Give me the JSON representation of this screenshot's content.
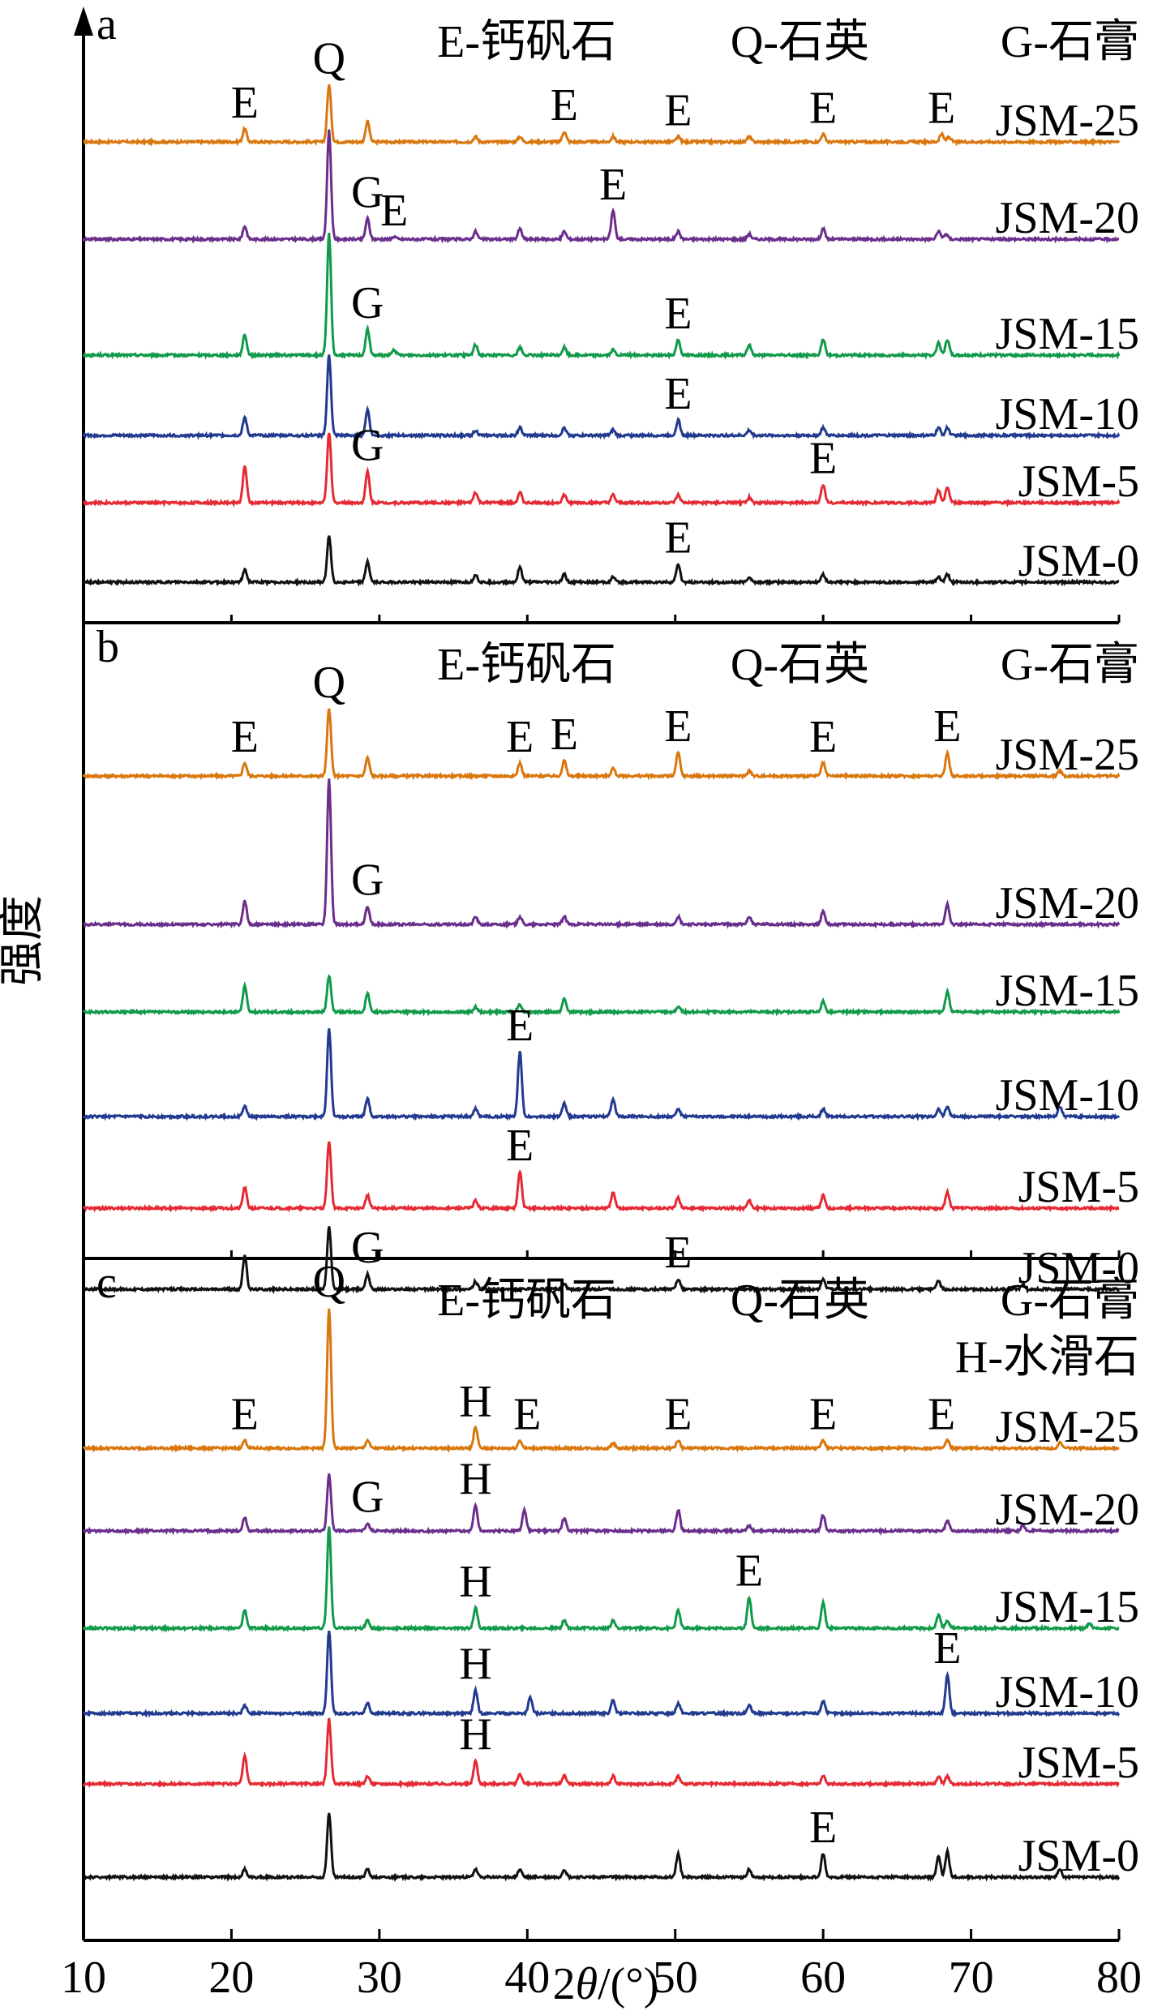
{
  "colors": {
    "JSM-25": "#d9770e",
    "JSM-20": "#6a2e8c",
    "JSM-15": "#119a4a",
    "JSM-10": "#223a8f",
    "JSM-5": "#e52a33",
    "JSM-0": "#111111"
  },
  "ylabel": "强度",
  "xlabel_parts": {
    "prefix": "2",
    "theta": "θ",
    "suffix": "/(°)"
  },
  "chart_data": [
    {
      "type": "line",
      "panel": "a",
      "legend_text": [
        "E-钙矾石",
        "Q-石英",
        "G-石膏"
      ],
      "xlim": [
        10,
        80
      ],
      "x_ticks": [
        10,
        20,
        30,
        40,
        50,
        60,
        70,
        80
      ],
      "series": [
        {
          "name": "JSM-25",
          "peaks": [
            [
              20.9,
              5
            ],
            [
              26.6,
              22
            ],
            [
              29.2,
              8
            ],
            [
              36.5,
              2
            ],
            [
              39.5,
              2
            ],
            [
              42.5,
              4
            ],
            [
              45.8,
              2
            ],
            [
              50.2,
              2
            ],
            [
              55,
              2
            ],
            [
              60,
              3
            ],
            [
              68,
              3
            ],
            [
              68.5,
              2
            ]
          ]
        },
        {
          "name": "JSM-20",
          "peaks": [
            [
              20.9,
              5
            ],
            [
              26.6,
              42
            ],
            [
              29.2,
              8
            ],
            [
              31,
              1
            ],
            [
              36.5,
              3
            ],
            [
              39.5,
              4
            ],
            [
              42.5,
              3
            ],
            [
              45.8,
              11
            ],
            [
              50.2,
              3
            ],
            [
              55,
              2
            ],
            [
              60,
              4
            ],
            [
              67.8,
              3
            ],
            [
              68.3,
              2
            ]
          ]
        },
        {
          "name": "JSM-15",
          "peaks": [
            [
              20.9,
              8
            ],
            [
              26.6,
              47
            ],
            [
              29.2,
              10
            ],
            [
              31,
              2
            ],
            [
              36.5,
              4
            ],
            [
              39.5,
              3
            ],
            [
              42.5,
              3
            ],
            [
              45.8,
              2
            ],
            [
              50.2,
              6
            ],
            [
              55,
              4
            ],
            [
              60,
              6
            ],
            [
              67.8,
              5
            ],
            [
              68.4,
              6
            ]
          ]
        },
        {
          "name": "JSM-10",
          "peaks": [
            [
              20.9,
              7
            ],
            [
              26.6,
              31
            ],
            [
              29.2,
              10
            ],
            [
              36.5,
              2
            ],
            [
              39.5,
              3
            ],
            [
              42.5,
              3
            ],
            [
              45.8,
              2
            ],
            [
              50.2,
              6
            ],
            [
              55,
              2
            ],
            [
              60,
              3
            ],
            [
              67.8,
              3
            ],
            [
              68.4,
              3
            ]
          ]
        },
        {
          "name": "JSM-5",
          "peaks": [
            [
              20.9,
              14
            ],
            [
              26.6,
              27
            ],
            [
              29.2,
              12
            ],
            [
              36.5,
              4
            ],
            [
              39.5,
              4
            ],
            [
              42.5,
              3
            ],
            [
              45.8,
              3
            ],
            [
              50.2,
              3
            ],
            [
              55,
              2
            ],
            [
              60,
              7
            ],
            [
              67.8,
              5
            ],
            [
              68.4,
              6
            ]
          ]
        },
        {
          "name": "JSM-0",
          "peaks": [
            [
              20.9,
              5
            ],
            [
              26.6,
              18
            ],
            [
              29.2,
              8
            ],
            [
              36.5,
              3
            ],
            [
              39.5,
              6
            ],
            [
              42.5,
              3
            ],
            [
              45.8,
              2
            ],
            [
              50.2,
              7
            ],
            [
              55,
              2
            ],
            [
              60,
              3
            ],
            [
              67.8,
              2
            ],
            [
              68.4,
              3
            ]
          ]
        }
      ],
      "peak_labels": [
        {
          "text": "E",
          "x": 20.9,
          "series": "JSM-25"
        },
        {
          "text": "Q",
          "x": 26.6,
          "series": "JSM-25"
        },
        {
          "text": "E",
          "x": 42.5,
          "series": "JSM-25"
        },
        {
          "text": "E",
          "x": 50.2,
          "series": "JSM-25"
        },
        {
          "text": "E",
          "x": 60.0,
          "series": "JSM-25"
        },
        {
          "text": "E",
          "x": 68.0,
          "series": "JSM-25"
        },
        {
          "text": "G",
          "x": 29.2,
          "series": "JSM-20"
        },
        {
          "text": "E",
          "x": 31.0,
          "series": "JSM-20"
        },
        {
          "text": "E",
          "x": 45.8,
          "series": "JSM-20"
        },
        {
          "text": "G",
          "x": 29.2,
          "series": "JSM-15"
        },
        {
          "text": "E",
          "x": 50.2,
          "series": "JSM-15"
        },
        {
          "text": "E",
          "x": 50.2,
          "series": "JSM-10"
        },
        {
          "text": "G",
          "x": 29.2,
          "series": "JSM-5"
        },
        {
          "text": "E",
          "x": 60.0,
          "series": "JSM-5"
        },
        {
          "text": "E",
          "x": 50.2,
          "series": "JSM-0"
        }
      ]
    },
    {
      "type": "line",
      "panel": "b",
      "legend_text": [
        "E-钙矾石",
        "Q-石英",
        "G-石膏"
      ],
      "xlim": [
        10,
        80
      ],
      "x_ticks": [
        10,
        20,
        30,
        40,
        50,
        60,
        70,
        80
      ],
      "series": [
        {
          "name": "JSM-25",
          "peaks": [
            [
              20.9,
              5
            ],
            [
              26.6,
              26
            ],
            [
              29.2,
              7
            ],
            [
              39.5,
              5
            ],
            [
              42.5,
              6
            ],
            [
              45.8,
              3
            ],
            [
              50.2,
              9
            ],
            [
              55,
              2
            ],
            [
              60,
              5
            ],
            [
              68.4,
              9
            ],
            [
              76,
              2
            ]
          ]
        },
        {
          "name": "JSM-20",
          "peaks": [
            [
              20.9,
              9
            ],
            [
              26.6,
              56
            ],
            [
              29.2,
              7
            ],
            [
              36.5,
              3
            ],
            [
              39.5,
              3
            ],
            [
              42.5,
              3
            ],
            [
              50.2,
              3
            ],
            [
              55,
              3
            ],
            [
              60,
              5
            ],
            [
              68.4,
              8
            ]
          ]
        },
        {
          "name": "JSM-15",
          "peaks": [
            [
              20.9,
              10
            ],
            [
              26.6,
              14
            ],
            [
              29.2,
              7
            ],
            [
              36.5,
              2
            ],
            [
              39.5,
              3
            ],
            [
              42.5,
              5
            ],
            [
              50.2,
              2
            ],
            [
              60,
              4
            ],
            [
              68.4,
              8
            ]
          ]
        },
        {
          "name": "JSM-10",
          "peaks": [
            [
              20.9,
              4
            ],
            [
              26.6,
              34
            ],
            [
              29.2,
              7
            ],
            [
              36.5,
              3
            ],
            [
              39.5,
              25
            ],
            [
              42.5,
              5
            ],
            [
              45.8,
              7
            ],
            [
              50.2,
              3
            ],
            [
              60,
              3
            ],
            [
              67.8,
              3
            ],
            [
              68.4,
              4
            ],
            [
              76,
              4
            ]
          ]
        },
        {
          "name": "JSM-5",
          "peaks": [
            [
              20.9,
              8
            ],
            [
              26.6,
              26
            ],
            [
              29.2,
              5
            ],
            [
              36.5,
              3
            ],
            [
              39.5,
              14
            ],
            [
              45.8,
              6
            ],
            [
              50.2,
              4
            ],
            [
              55,
              3
            ],
            [
              60,
              5
            ],
            [
              68.4,
              6
            ]
          ]
        },
        {
          "name": "JSM-0",
          "peaks": [
            [
              20.9,
              13
            ],
            [
              26.6,
              24
            ],
            [
              29.2,
              6
            ],
            [
              36.5,
              3
            ],
            [
              42.5,
              2
            ],
            [
              50.2,
              4
            ],
            [
              60,
              4
            ],
            [
              67.8,
              3
            ],
            [
              73.5,
              2
            ]
          ]
        }
      ],
      "peak_labels": [
        {
          "text": "E",
          "x": 20.9,
          "series": "JSM-25"
        },
        {
          "text": "Q",
          "x": 26.6,
          "series": "JSM-25"
        },
        {
          "text": "E",
          "x": 39.5,
          "series": "JSM-25"
        },
        {
          "text": "E",
          "x": 42.5,
          "series": "JSM-25"
        },
        {
          "text": "E",
          "x": 50.2,
          "series": "JSM-25"
        },
        {
          "text": "E",
          "x": 60.0,
          "series": "JSM-25"
        },
        {
          "text": "E",
          "x": 68.4,
          "series": "JSM-25"
        },
        {
          "text": "G",
          "x": 29.2,
          "series": "JSM-20"
        },
        {
          "text": "E",
          "x": 39.5,
          "series": "JSM-10"
        },
        {
          "text": "E",
          "x": 39.5,
          "series": "JSM-5"
        },
        {
          "text": "G",
          "x": 29.2,
          "series": "JSM-0"
        },
        {
          "text": "E",
          "x": 50.2,
          "series": "JSM-0"
        }
      ]
    },
    {
      "type": "line",
      "panel": "c",
      "legend_text": [
        "E-钙矾石",
        "Q-石英",
        "G-石膏",
        "H-水滑石"
      ],
      "xlim": [
        10,
        80
      ],
      "x_ticks": [
        10,
        20,
        30,
        40,
        50,
        60,
        70,
        80
      ],
      "series": [
        {
          "name": "JSM-25",
          "peaks": [
            [
              20.9,
              3
            ],
            [
              26.6,
              54
            ],
            [
              29.2,
              3
            ],
            [
              36.5,
              8
            ],
            [
              39.5,
              3
            ],
            [
              45.8,
              2
            ],
            [
              50.2,
              3
            ],
            [
              60,
              3
            ],
            [
              68.4,
              3
            ],
            [
              76,
              2
            ]
          ]
        },
        {
          "name": "JSM-20",
          "peaks": [
            [
              20.9,
              5
            ],
            [
              26.6,
              22
            ],
            [
              29.2,
              3
            ],
            [
              36.5,
              10
            ],
            [
              39.8,
              8
            ],
            [
              42.5,
              5
            ],
            [
              50.2,
              8
            ],
            [
              55,
              2
            ],
            [
              60,
              6
            ],
            [
              68.4,
              4
            ],
            [
              73.5,
              2
            ]
          ]
        },
        {
          "name": "JSM-15",
          "peaks": [
            [
              20.9,
              7
            ],
            [
              26.6,
              39
            ],
            [
              29.2,
              3
            ],
            [
              36.5,
              8
            ],
            [
              42.5,
              3
            ],
            [
              45.8,
              3
            ],
            [
              50.2,
              7
            ],
            [
              55,
              12
            ],
            [
              60,
              10
            ],
            [
              67.8,
              5
            ],
            [
              68.4,
              3
            ],
            [
              78,
              2
            ]
          ]
        },
        {
          "name": "JSM-10",
          "peaks": [
            [
              20.9,
              3
            ],
            [
              26.6,
              32
            ],
            [
              29.2,
              4
            ],
            [
              36.5,
              9
            ],
            [
              40.2,
              6
            ],
            [
              45.8,
              5
            ],
            [
              50.2,
              4
            ],
            [
              55,
              3
            ],
            [
              60,
              5
            ],
            [
              68.4,
              15
            ]
          ]
        },
        {
          "name": "JSM-5",
          "peaks": [
            [
              20.9,
              11
            ],
            [
              26.6,
              25
            ],
            [
              29.2,
              3
            ],
            [
              36.5,
              9
            ],
            [
              39.5,
              4
            ],
            [
              42.5,
              3
            ],
            [
              45.8,
              3
            ],
            [
              50.2,
              3
            ],
            [
              60,
              3
            ],
            [
              67.8,
              3
            ],
            [
              68.4,
              3
            ]
          ]
        },
        {
          "name": "JSM-0",
          "peaks": [
            [
              20.9,
              3
            ],
            [
              26.6,
              25
            ],
            [
              29.2,
              3
            ],
            [
              36.5,
              3
            ],
            [
              39.5,
              3
            ],
            [
              42.5,
              3
            ],
            [
              50.2,
              9
            ],
            [
              55,
              3
            ],
            [
              60,
              9
            ],
            [
              67.8,
              8
            ],
            [
              68.4,
              10
            ],
            [
              76,
              3
            ]
          ]
        }
      ],
      "peak_labels": [
        {
          "text": "E",
          "x": 20.9,
          "series": "JSM-25"
        },
        {
          "text": "Q",
          "x": 26.6,
          "series": "JSM-25"
        },
        {
          "text": "H",
          "x": 36.5,
          "series": "JSM-25"
        },
        {
          "text": "E",
          "x": 40.0,
          "series": "JSM-25"
        },
        {
          "text": "E",
          "x": 50.2,
          "series": "JSM-25"
        },
        {
          "text": "E",
          "x": 60.0,
          "series": "JSM-25"
        },
        {
          "text": "E",
          "x": 68.0,
          "series": "JSM-25"
        },
        {
          "text": "G",
          "x": 29.2,
          "series": "JSM-20"
        },
        {
          "text": "H",
          "x": 36.5,
          "series": "JSM-20"
        },
        {
          "text": "H",
          "x": 36.5,
          "series": "JSM-15"
        },
        {
          "text": "E",
          "x": 55.0,
          "series": "JSM-15"
        },
        {
          "text": "H",
          "x": 36.5,
          "series": "JSM-10"
        },
        {
          "text": "E",
          "x": 68.4,
          "series": "JSM-10"
        },
        {
          "text": "H",
          "x": 36.5,
          "series": "JSM-5"
        },
        {
          "text": "E",
          "x": 60.0,
          "series": "JSM-0"
        }
      ]
    }
  ]
}
